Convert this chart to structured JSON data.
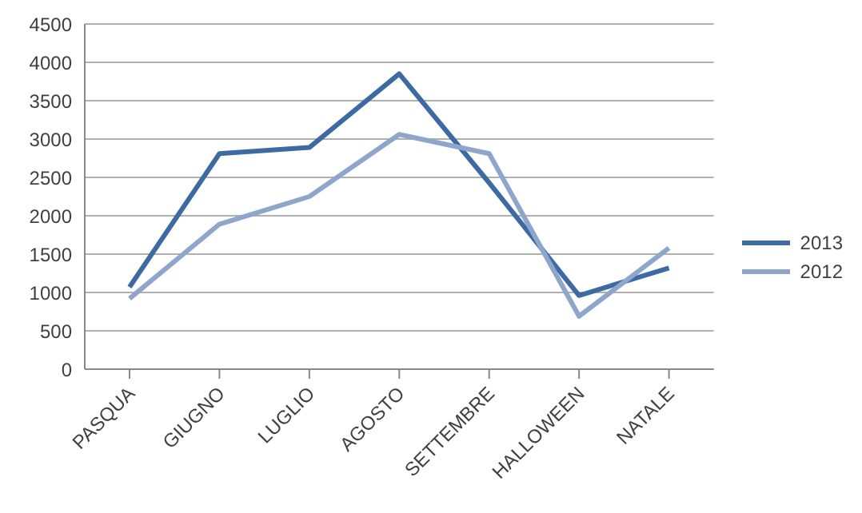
{
  "chart_data": {
    "type": "line",
    "categories": [
      "PASQUA",
      "GIUGNO",
      "LUGLIO",
      "AGOSTO",
      "SETTEMBRE",
      "HALLOWEEN",
      "NATALE"
    ],
    "series": [
      {
        "name": "2013",
        "color": "#3d6aa3",
        "values": [
          1070,
          2810,
          2890,
          3850,
          2430,
          960,
          1320
        ]
      },
      {
        "name": "2012",
        "color": "#8ea6cc",
        "values": [
          920,
          1890,
          2250,
          3060,
          2810,
          690,
          1580
        ]
      }
    ],
    "ylim": [
      0,
      4500
    ],
    "yticks": [
      0,
      500,
      1000,
      1500,
      2000,
      2500,
      3000,
      3500,
      4000,
      4500
    ],
    "grid": "y",
    "legend": "right",
    "marker": "none"
  }
}
